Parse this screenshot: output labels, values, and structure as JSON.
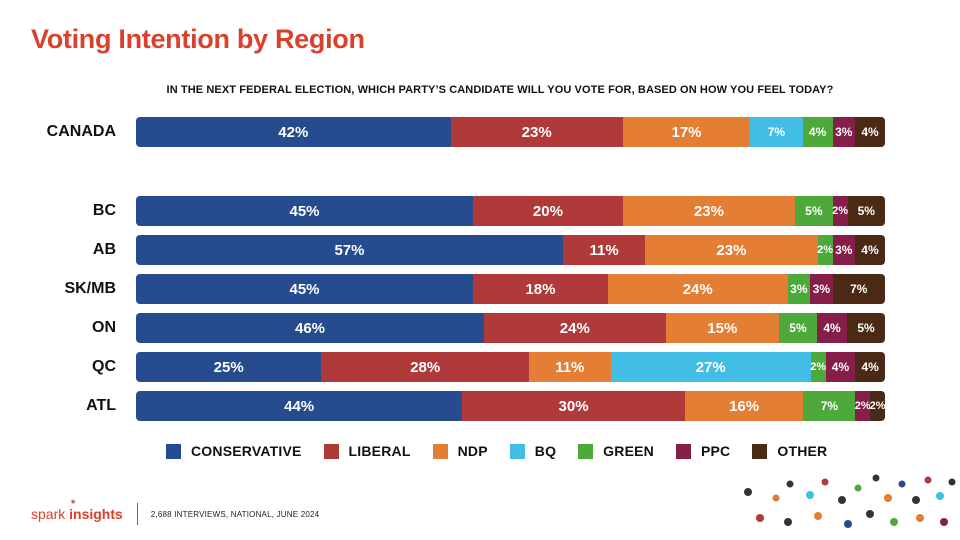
{
  "title": "Voting Intention by Region",
  "chart_data": {
    "type": "bar",
    "orientation": "horizontal",
    "stacked": true,
    "percent_stacked": true,
    "title": "Voting Intention by Region",
    "subtitle": "IN THE NEXT FEDERAL ELECTION, WHICH PARTY’S CANDIDATE WILL YOU VOTE FOR, BASED ON HOW YOU FEEL TODAY?",
    "xlabel": "",
    "ylabel": "",
    "categories": [
      "CANADA",
      "BC",
      "AB",
      "SK/MB",
      "ON",
      "QC",
      "ATL"
    ],
    "series": [
      {
        "name": "CONSERVATIVE",
        "color": "#264b8f",
        "values": [
          42,
          45,
          57,
          45,
          46,
          25,
          44
        ]
      },
      {
        "name": "LIBERAL",
        "color": "#b03a3a",
        "values": [
          23,
          20,
          11,
          18,
          24,
          28,
          30
        ]
      },
      {
        "name": "NDP",
        "color": "#e57e35",
        "values": [
          17,
          23,
          23,
          24,
          15,
          11,
          16
        ]
      },
      {
        "name": "BQ",
        "color": "#41bde6",
        "values": [
          7,
          0,
          0,
          0,
          0,
          27,
          0
        ]
      },
      {
        "name": "GREEN",
        "color": "#4ca93a",
        "values": [
          4,
          5,
          2,
          3,
          5,
          2,
          7
        ]
      },
      {
        "name": "PPC",
        "color": "#851f4a",
        "values": [
          3,
          2,
          3,
          3,
          4,
          4,
          2
        ]
      },
      {
        "name": "OTHER",
        "color": "#4a2a14",
        "values": [
          4,
          5,
          4,
          7,
          5,
          4,
          2
        ]
      }
    ],
    "value_suffix": "%",
    "legend_position": "bottom",
    "grid": false
  },
  "footer": {
    "brand_spark": "spark",
    "brand_insights": "insights",
    "note": "2,688 INTERVIEWS, NATIONAL, JUNE 2024"
  }
}
